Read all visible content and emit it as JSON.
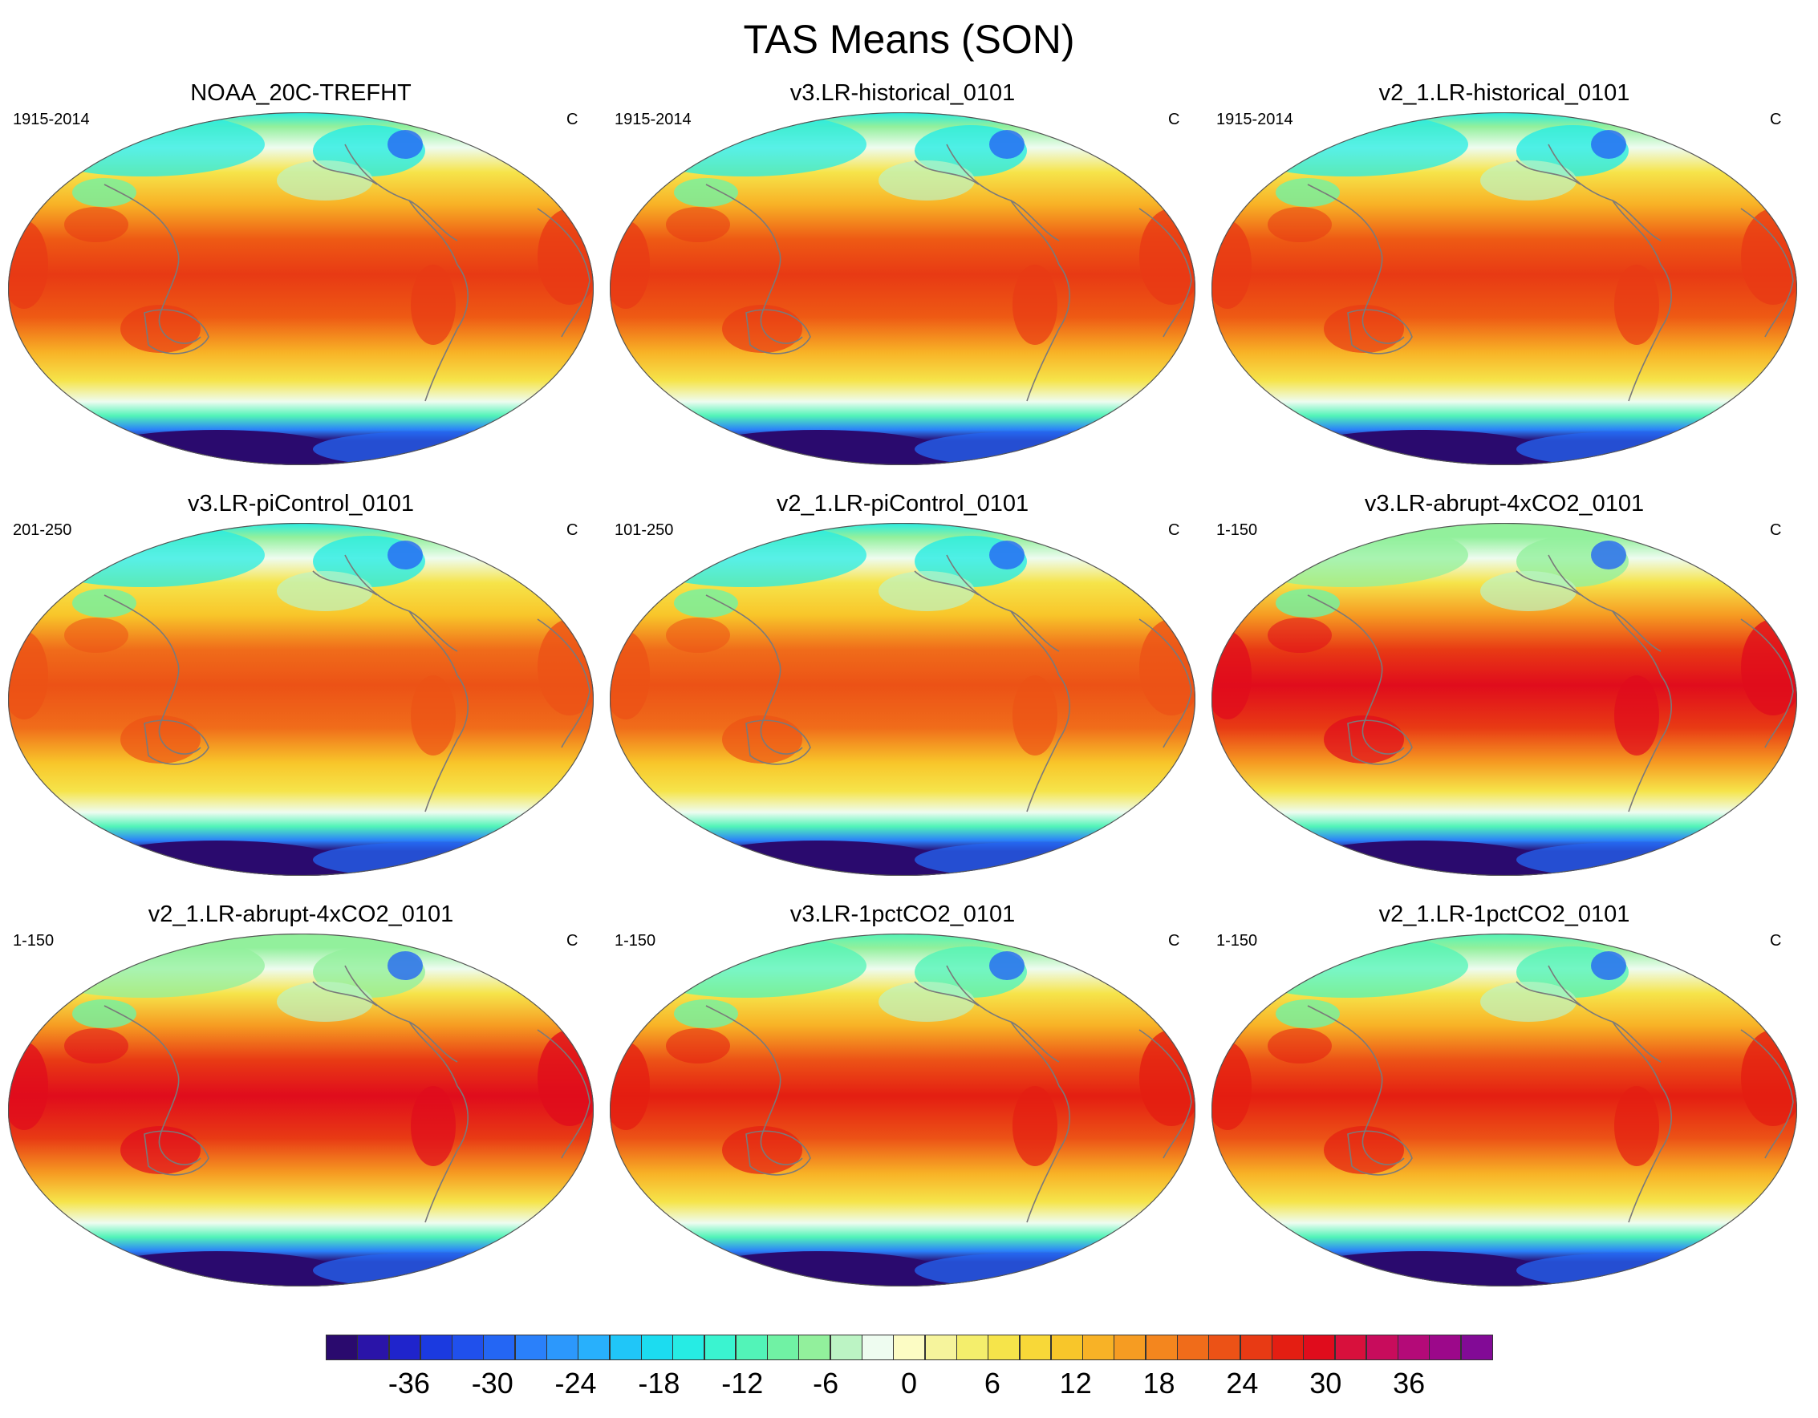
{
  "title": "TAS Means (SON)",
  "panels": [
    {
      "title": "NOAA_20C-TREFHT",
      "years": "1915-2014",
      "units": "C",
      "scenario": "hist"
    },
    {
      "title": "v3.LR-historical_0101",
      "years": "1915-2014",
      "units": "C",
      "scenario": "hist"
    },
    {
      "title": "v2_1.LR-historical_0101",
      "years": "1915-2014",
      "units": "C",
      "scenario": "hist"
    },
    {
      "title": "v3.LR-piControl_0101",
      "years": "201-250",
      "units": "C",
      "scenario": "pi"
    },
    {
      "title": "v2_1.LR-piControl_0101",
      "years": "101-250",
      "units": "C",
      "scenario": "pi"
    },
    {
      "title": "v3.LR-abrupt-4xCO2_0101",
      "years": "1-150",
      "units": "C",
      "scenario": "abrupt"
    },
    {
      "title": "v2_1.LR-abrupt-4xCO2_0101",
      "years": "1-150",
      "units": "C",
      "scenario": "abrupt"
    },
    {
      "title": "v3.LR-1pctCO2_0101",
      "years": "1-150",
      "units": "C",
      "scenario": "pct"
    },
    {
      "title": "v2_1.LR-1pctCO2_0101",
      "years": "1-150",
      "units": "C",
      "scenario": "pct"
    }
  ],
  "colorbar": {
    "min": -42,
    "max": 42,
    "step": 2,
    "labels": [
      "-36",
      "-30",
      "-24",
      "-18",
      "-12",
      "-6",
      "0",
      "6",
      "12",
      "18",
      "24",
      "30",
      "36"
    ],
    "colors": [
      "#2a0a6e",
      "#2a14a8",
      "#1f24cc",
      "#1b3ae0",
      "#2050ec",
      "#2466f4",
      "#2a80fa",
      "#2c98fc",
      "#28b0fc",
      "#20c6f8",
      "#1cdcf0",
      "#26ece4",
      "#3af4d0",
      "#52f4b8",
      "#70f2a4",
      "#92f09c",
      "#bcf4c4",
      "#eefcf0",
      "#fcfcc4",
      "#f6f49c",
      "#f4ee6c",
      "#f6e44a",
      "#f8d838",
      "#f8c62a",
      "#f8b226",
      "#f69c22",
      "#f4861e",
      "#f06c1a",
      "#ec5216",
      "#e83a14",
      "#e41e12",
      "#e00c1c",
      "#d8103c",
      "#c80c5c",
      "#b40a78",
      "#9c088a",
      "#820a96"
    ]
  }
}
